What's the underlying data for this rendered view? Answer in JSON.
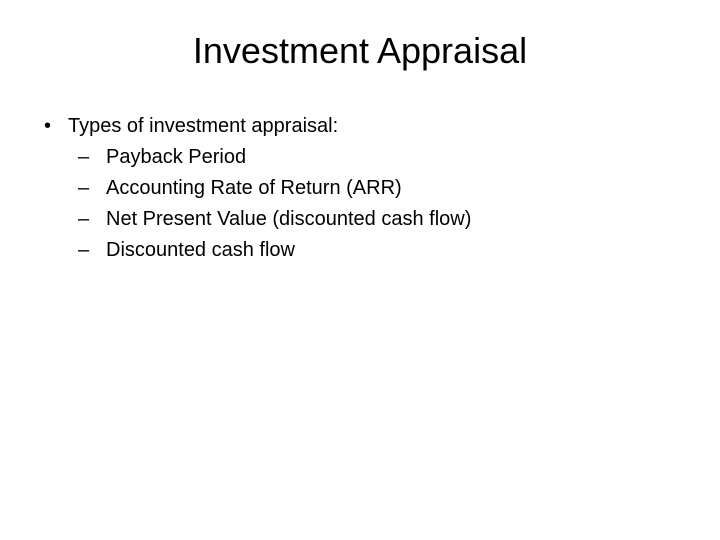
{
  "title": "Investment Appraisal",
  "bullets": {
    "level1_marker": "•",
    "level2_marker": "–",
    "main": {
      "text": "Types of investment appraisal:",
      "subitems": [
        "Payback Period",
        "Accounting Rate of Return (ARR)",
        "Net Present Value (discounted cash flow)",
        "Discounted cash flow"
      ]
    }
  },
  "styling": {
    "background_color": "#ffffff",
    "text_color": "#000000",
    "title_fontsize": 36,
    "body_fontsize": 20,
    "font_family": "Arial"
  }
}
